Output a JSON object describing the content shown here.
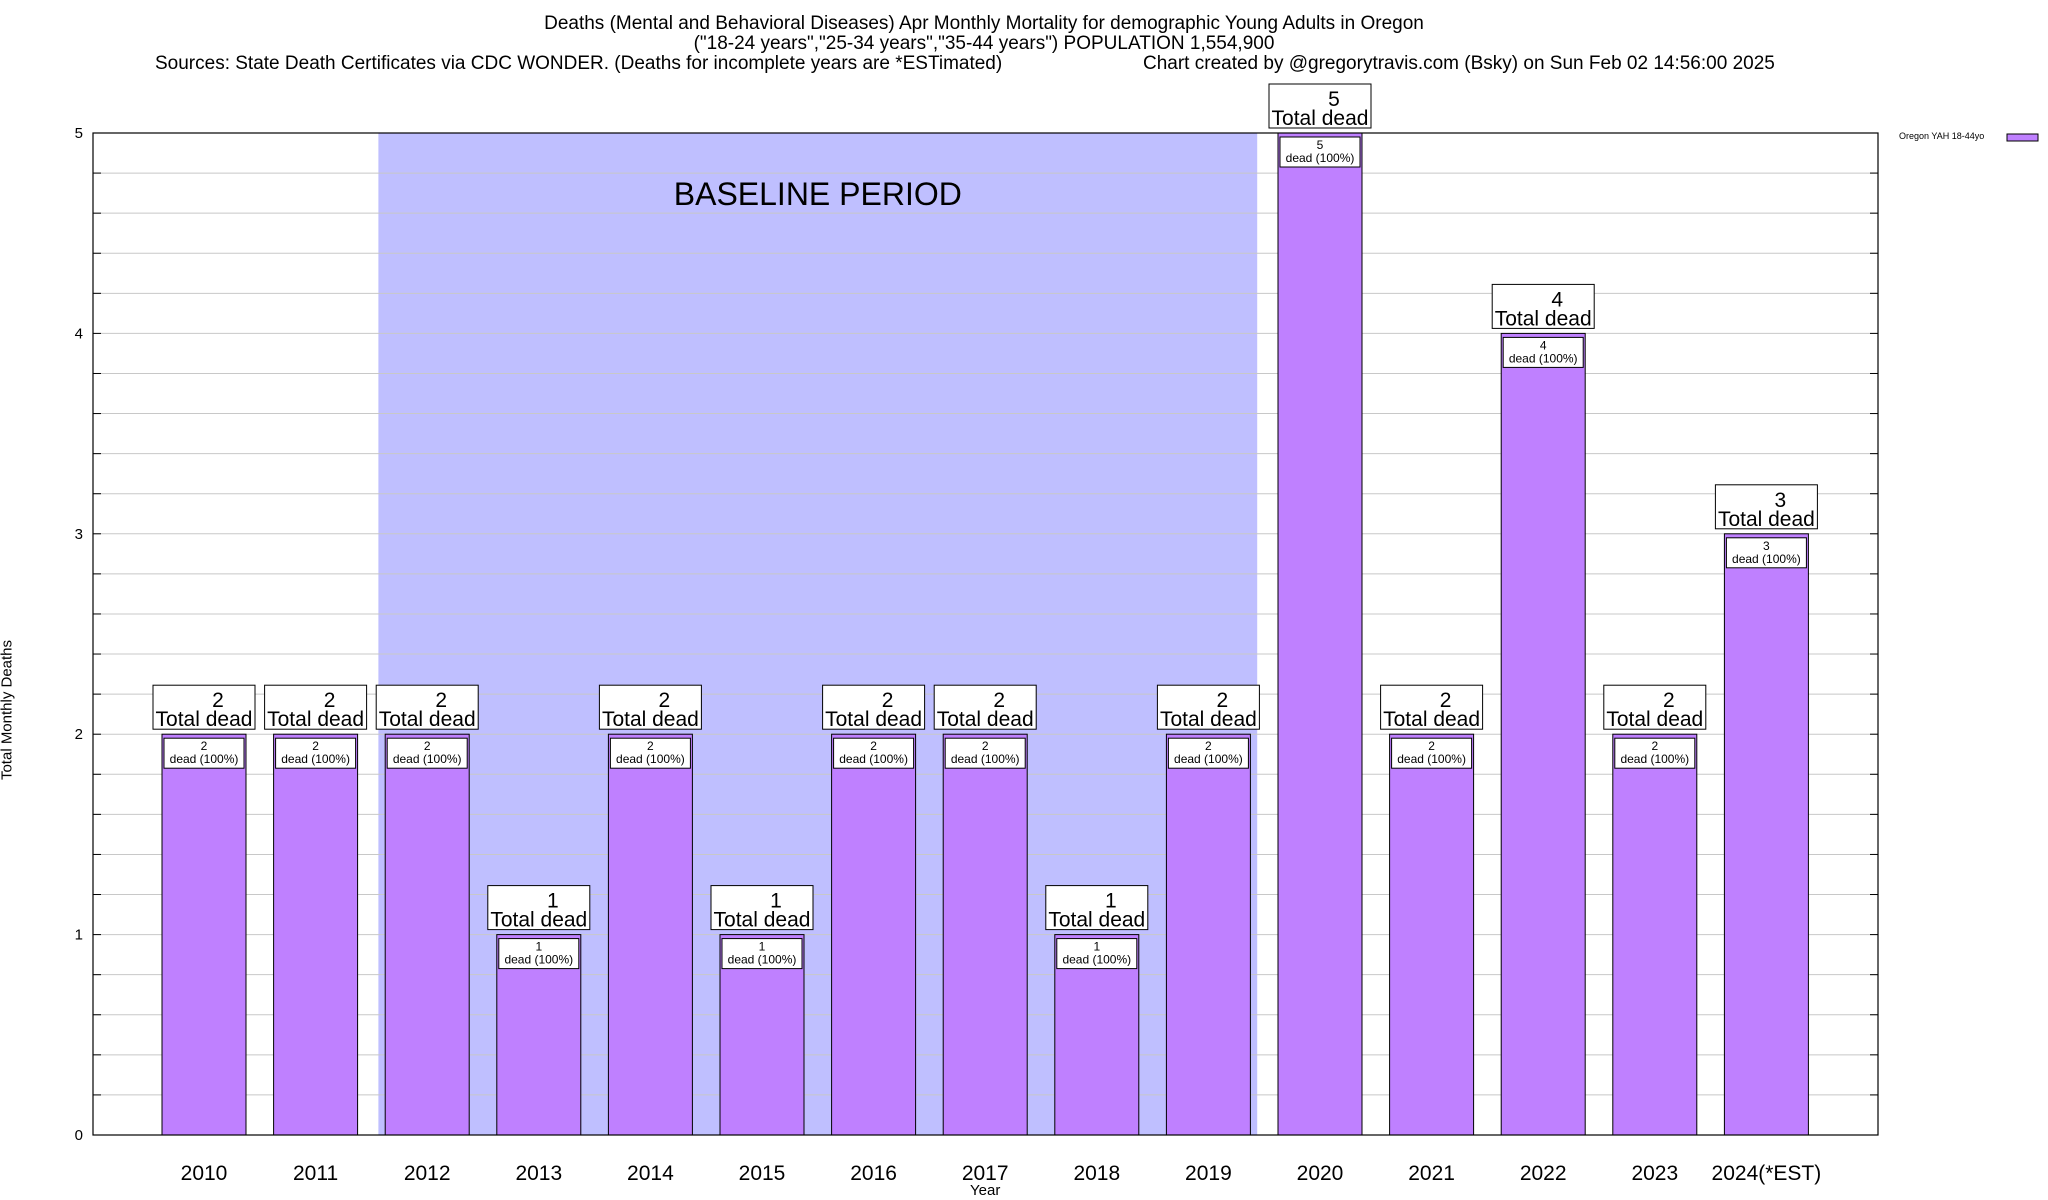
{
  "chart_data": {
    "type": "bar",
    "title_lines": [
      "Deaths (Mental and Behavioral Diseases) Apr Monthly Mortality for demographic Young Adults in Oregon",
      "(\"18-24 years\",\"25-34 years\",\"35-44 years\") POPULATION 1,554,900",
      "Sources: State Death Certificates via CDC WONDER. (Deaths for incomplete years are *ESTimated)",
      "Chart created by @gregorytravis.com (Bsky) on Sun Feb 02 14:56:00 2025"
    ],
    "xlabel": "Year",
    "ylabel": "Total Monthly Deaths",
    "ylim": [
      0,
      5
    ],
    "yticks": [
      0,
      1,
      2,
      3,
      4,
      5
    ],
    "minor_gridlines_per_unit": 5,
    "categories": [
      "2010",
      "2011",
      "2012",
      "2013",
      "2014",
      "2015",
      "2016",
      "2017",
      "2018",
      "2019",
      "2020",
      "2021",
      "2022",
      "2023",
      "2024(*EST)"
    ],
    "series": [
      {
        "name": "Oregon YAH 18-44yo",
        "color": "#bf80ff",
        "values": [
          2,
          2,
          2,
          1,
          2,
          1,
          2,
          2,
          1,
          2,
          5,
          2,
          4,
          2,
          3
        ]
      }
    ],
    "total_labels": [
      "2",
      "2",
      "2",
      "1",
      "2",
      "1",
      "2",
      "2",
      "1",
      "2",
      "5",
      "2",
      "4",
      "2",
      "3"
    ],
    "total_label_suffix": "Total dead",
    "inner_labels": [
      "2",
      "2",
      "2",
      "1",
      "2",
      "1",
      "2",
      "2",
      "1",
      "2",
      "5",
      "2",
      "4",
      "2",
      "3"
    ],
    "inner_label_suffix": "dead (100%)",
    "baseline": {
      "label": "BASELINE PERIOD",
      "start": "2012",
      "end": "2019",
      "color": "#bfbfff"
    },
    "legend": {
      "position": "top-right",
      "entry": "Oregon YAH 18-44yo"
    }
  }
}
